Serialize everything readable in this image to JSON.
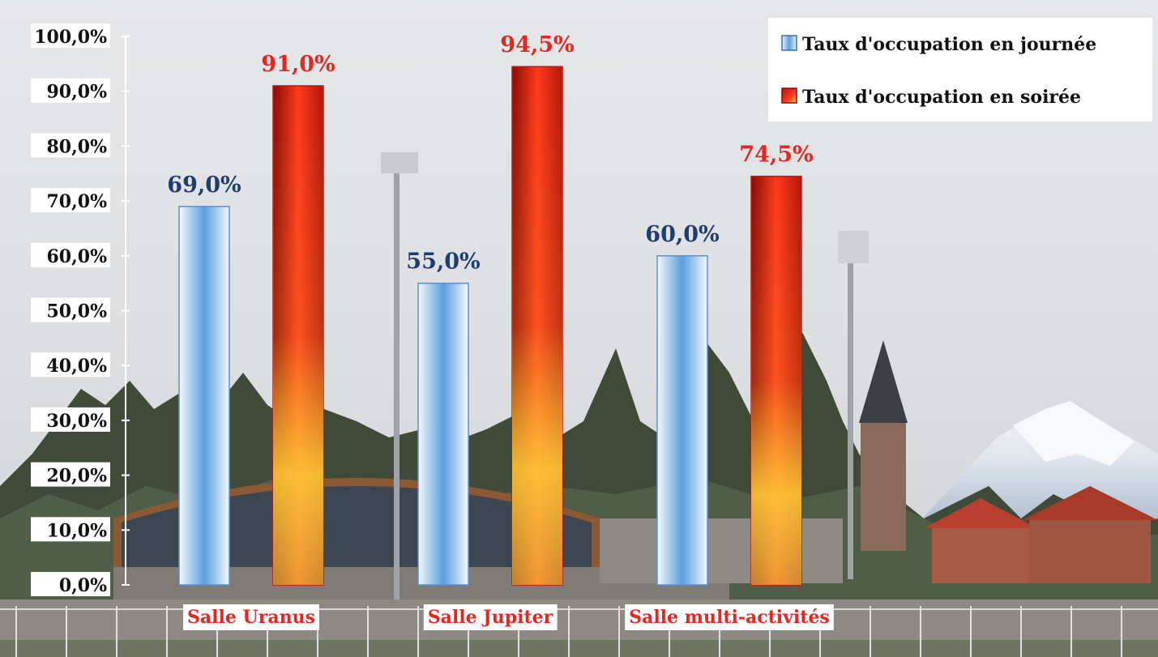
{
  "chart_data": {
    "type": "bar",
    "categories": [
      "Salle Uranus",
      "Salle Jupiter",
      "Salle multi-activités"
    ],
    "series": [
      {
        "name": "Taux d'occupation en journée",
        "values": [
          69.0,
          55.0,
          60.0
        ]
      },
      {
        "name": "Taux d'occupation en soirée",
        "values": [
          91.0,
          94.5,
          74.5
        ]
      }
    ],
    "data_labels": [
      [
        "69,0%",
        "55,0%",
        "60,0%"
      ],
      [
        "91,0%",
        "94,5%",
        "74,5%"
      ]
    ],
    "y_ticks": [
      "0,0%",
      "10,0%",
      "20,0%",
      "30,0%",
      "40,0%",
      "50,0%",
      "60,0%",
      "70,0%",
      "80,0%",
      "90,0%",
      "100,0%"
    ],
    "ylim": [
      0,
      100
    ],
    "title": "",
    "xlabel": "",
    "ylabel": "",
    "grid": false,
    "legend_position": "top-right",
    "colors": {
      "day_label": "#1f3d6e",
      "evening_label": "#e8261f",
      "category_label": "#e8261f",
      "day_bar_edge": "#5a8fd6",
      "evening_bar_edge": "#c01812"
    }
  }
}
